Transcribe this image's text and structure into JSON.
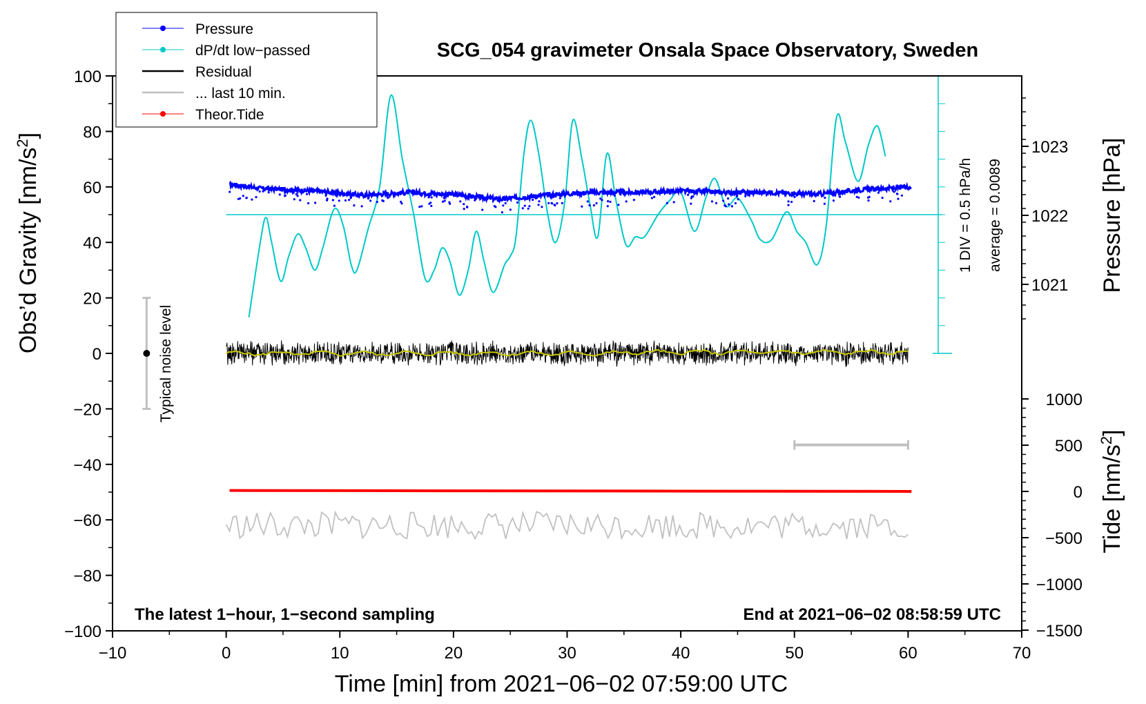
{
  "chart_data": {
    "type": "line",
    "title": "SCG_054 gravimeter Onsala Space Observatory, Sweden",
    "xlabel": "Time [min] from 2021−06−02 07:59:00 UTC",
    "ylabel": "Obs’d Gravity [nm/s²]",
    "ylabel_right_top": "Pressure [hPa]",
    "ylabel_right_bottom": "Tide [nm/s²]",
    "xlim": [
      -10,
      70
    ],
    "ylim": [
      -100,
      100
    ],
    "x_ticks": [
      "−10",
      "0",
      "10",
      "20",
      "30",
      "40",
      "50",
      "60",
      "70"
    ],
    "y_ticks": [
      "−100",
      "−80",
      "−60",
      "−40",
      "−20",
      "0",
      "20",
      "40",
      "60",
      "80",
      "100"
    ],
    "pressure_ticks": [
      "1021",
      "1022",
      "1023"
    ],
    "tide_ticks": [
      "−1500",
      "−1000",
      "−500",
      "0",
      "500",
      "1000"
    ],
    "legend": [
      {
        "label": "Pressure",
        "color": "#0000ff"
      },
      {
        "label": "dP/dt low−passed",
        "color": "#00c8c8"
      },
      {
        "label": "Residual",
        "color": "#000000"
      },
      {
        "label": "... last 10 min.",
        "color": "#c0c0c0"
      },
      {
        "label": "Theor.Tide",
        "color": "#ff0000"
      }
    ],
    "legend_position": "top-left",
    "annotations": {
      "noise": "Typical noise level",
      "div": "1 DIV = 0.5 hPa/h",
      "average": "average = 0.0089",
      "bottom_left": "The latest 1−hour, 1−second sampling",
      "bottom_right": "End at 2021−06−02 08:58:59 UTC"
    },
    "series": [
      {
        "name": "dP/dt low-passed",
        "color": "#00c8c8",
        "points": [
          [
            2,
            13
          ],
          [
            3,
            40
          ],
          [
            3.5,
            49
          ],
          [
            4,
            40
          ],
          [
            4.8,
            26
          ],
          [
            5.5,
            35
          ],
          [
            6.3,
            43
          ],
          [
            7,
            38
          ],
          [
            7.8,
            30
          ],
          [
            8.5,
            38
          ],
          [
            9.5,
            52
          ],
          [
            10.3,
            46
          ],
          [
            11,
            32
          ],
          [
            11.5,
            30
          ],
          [
            12.5,
            45
          ],
          [
            13.5,
            60
          ],
          [
            14.5,
            93
          ],
          [
            15.5,
            70
          ],
          [
            16.5,
            50
          ],
          [
            17.5,
            27
          ],
          [
            18.3,
            30
          ],
          [
            19,
            38
          ],
          [
            19.7,
            33
          ],
          [
            20.5,
            21
          ],
          [
            21.3,
            30
          ],
          [
            22,
            44
          ],
          [
            22.7,
            33
          ],
          [
            23.5,
            22
          ],
          [
            24.5,
            32
          ],
          [
            25,
            35
          ],
          [
            25.5,
            42
          ],
          [
            26.2,
            72
          ],
          [
            26.8,
            84
          ],
          [
            27.5,
            72
          ],
          [
            28.3,
            50
          ],
          [
            29,
            40
          ],
          [
            29.8,
            55
          ],
          [
            30.5,
            84
          ],
          [
            31.3,
            70
          ],
          [
            32,
            54
          ],
          [
            32.7,
            42
          ],
          [
            33.5,
            72
          ],
          [
            34.3,
            55
          ],
          [
            35.2,
            39
          ],
          [
            36,
            42
          ],
          [
            36.8,
            42
          ],
          [
            38,
            50
          ],
          [
            39,
            55
          ],
          [
            40,
            58
          ],
          [
            41.2,
            44
          ],
          [
            42.2,
            56
          ],
          [
            43,
            63
          ],
          [
            44,
            53
          ],
          [
            45,
            56
          ],
          [
            46.2,
            48
          ],
          [
            47,
            41
          ],
          [
            48,
            41
          ],
          [
            49.3,
            51
          ],
          [
            50.2,
            44
          ],
          [
            51,
            40
          ],
          [
            52,
            32
          ],
          [
            52.8,
            46
          ],
          [
            53.7,
            85
          ],
          [
            54.5,
            76
          ],
          [
            55.6,
            62
          ],
          [
            56.5,
            75
          ],
          [
            57.3,
            82
          ],
          [
            58,
            71
          ]
        ]
      },
      {
        "name": "Pressure",
        "color": "#0000ff",
        "points": [
          [
            0.3,
            61
          ],
          [
            3,
            59.5
          ],
          [
            8,
            58.5
          ],
          [
            12,
            57
          ],
          [
            16,
            58
          ],
          [
            20,
            57.3
          ],
          [
            24,
            55.5
          ],
          [
            28,
            57
          ],
          [
            32,
            58
          ],
          [
            36,
            58
          ],
          [
            40,
            58.5
          ],
          [
            44,
            58
          ],
          [
            48,
            58
          ],
          [
            52,
            57.3
          ],
          [
            56,
            59
          ],
          [
            60.3,
            60
          ]
        ]
      },
      {
        "name": "Residual",
        "color": "#000000",
        "center": 0,
        "amplitude": 4.5,
        "x_range": [
          0,
          60
        ]
      },
      {
        "name": "... last 10 min.",
        "color": "#c0c0c0",
        "center": -62,
        "amplitude": 5,
        "x_range": [
          0,
          60
        ]
      },
      {
        "name": "Theor.Tide",
        "color": "#ff0000",
        "units": "nm/s²",
        "points": [
          [
            0.3,
            10
          ],
          [
            60.3,
            0
          ]
        ]
      }
    ],
    "dpdt_reference_line": 50,
    "dpdt_scale_range": [
      0,
      100
    ],
    "noise_bar": {
      "x": -7,
      "center": 0,
      "range": [
        -20,
        20
      ]
    },
    "ten_min_bar": {
      "range": [
        50,
        60
      ],
      "y": -33
    }
  }
}
